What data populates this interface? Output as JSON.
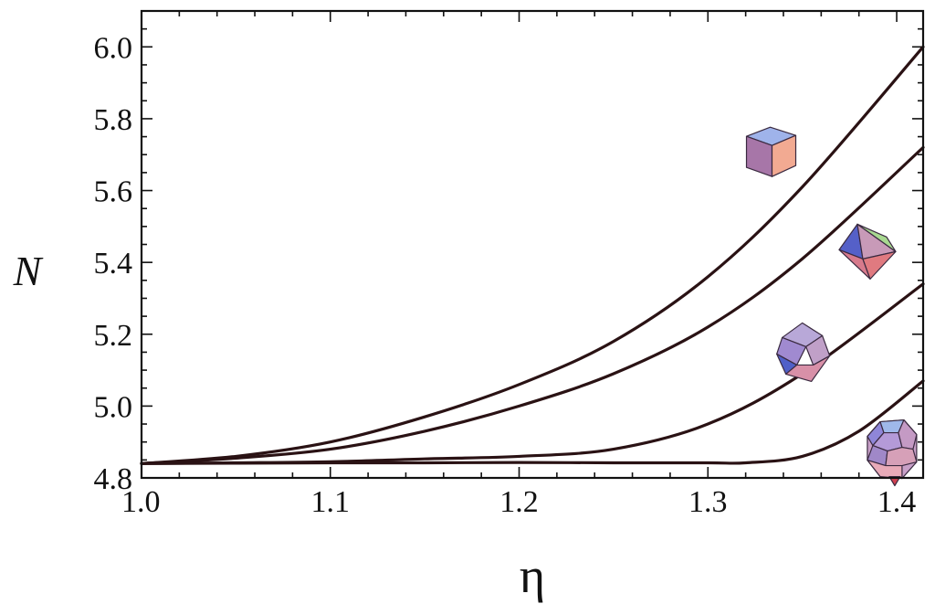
{
  "chart_data": {
    "type": "line",
    "xlabel": "η",
    "ylabel": "N",
    "xlim": [
      1.0,
      1.414
    ],
    "ylim": [
      4.8,
      6.1
    ],
    "x_ticks": [
      "1.0",
      "1.1",
      "1.2",
      "1.3",
      "1.4"
    ],
    "y_ticks": [
      "4.8",
      "5.0",
      "5.2",
      "5.4",
      "5.6",
      "5.8",
      "6.0"
    ],
    "grid": false,
    "series": [
      {
        "icon": "cube-icon",
        "x": [
          1.0,
          1.05,
          1.1,
          1.15,
          1.2,
          1.25,
          1.3,
          1.35,
          1.414
        ],
        "values": [
          4.84,
          4.86,
          4.9,
          4.97,
          5.06,
          5.18,
          5.36,
          5.61,
          6.0
        ]
      },
      {
        "icon": "octahedron-icon",
        "x": [
          1.0,
          1.05,
          1.1,
          1.15,
          1.2,
          1.25,
          1.3,
          1.35,
          1.414
        ],
        "values": [
          4.84,
          4.855,
          4.88,
          4.93,
          5.0,
          5.09,
          5.22,
          5.41,
          5.72
        ]
      },
      {
        "icon": "rhombic-dodecahedron-icon",
        "x": [
          1.0,
          1.05,
          1.1,
          1.15,
          1.2,
          1.25,
          1.3,
          1.35,
          1.414
        ],
        "values": [
          4.84,
          4.842,
          4.845,
          4.853,
          4.86,
          4.88,
          4.95,
          5.09,
          5.34
        ]
      },
      {
        "icon": "truncated-polyhedron-icon",
        "x": [
          1.0,
          1.05,
          1.1,
          1.15,
          1.2,
          1.25,
          1.3,
          1.32,
          1.35,
          1.38,
          1.414
        ],
        "values": [
          4.84,
          4.841,
          4.842,
          4.842,
          4.843,
          4.842,
          4.842,
          4.842,
          4.86,
          4.93,
          5.07
        ]
      }
    ],
    "icons": [
      {
        "name": "cube-icon",
        "x": 1.333,
        "y": 5.7
      },
      {
        "name": "octahedron-icon",
        "x": 1.384,
        "y": 5.43
      },
      {
        "name": "rhombic-dodecahedron-icon",
        "x": 1.35,
        "y": 5.15
      },
      {
        "name": "truncated-polyhedron-icon",
        "x": 1.398,
        "y": 4.88
      }
    ]
  }
}
